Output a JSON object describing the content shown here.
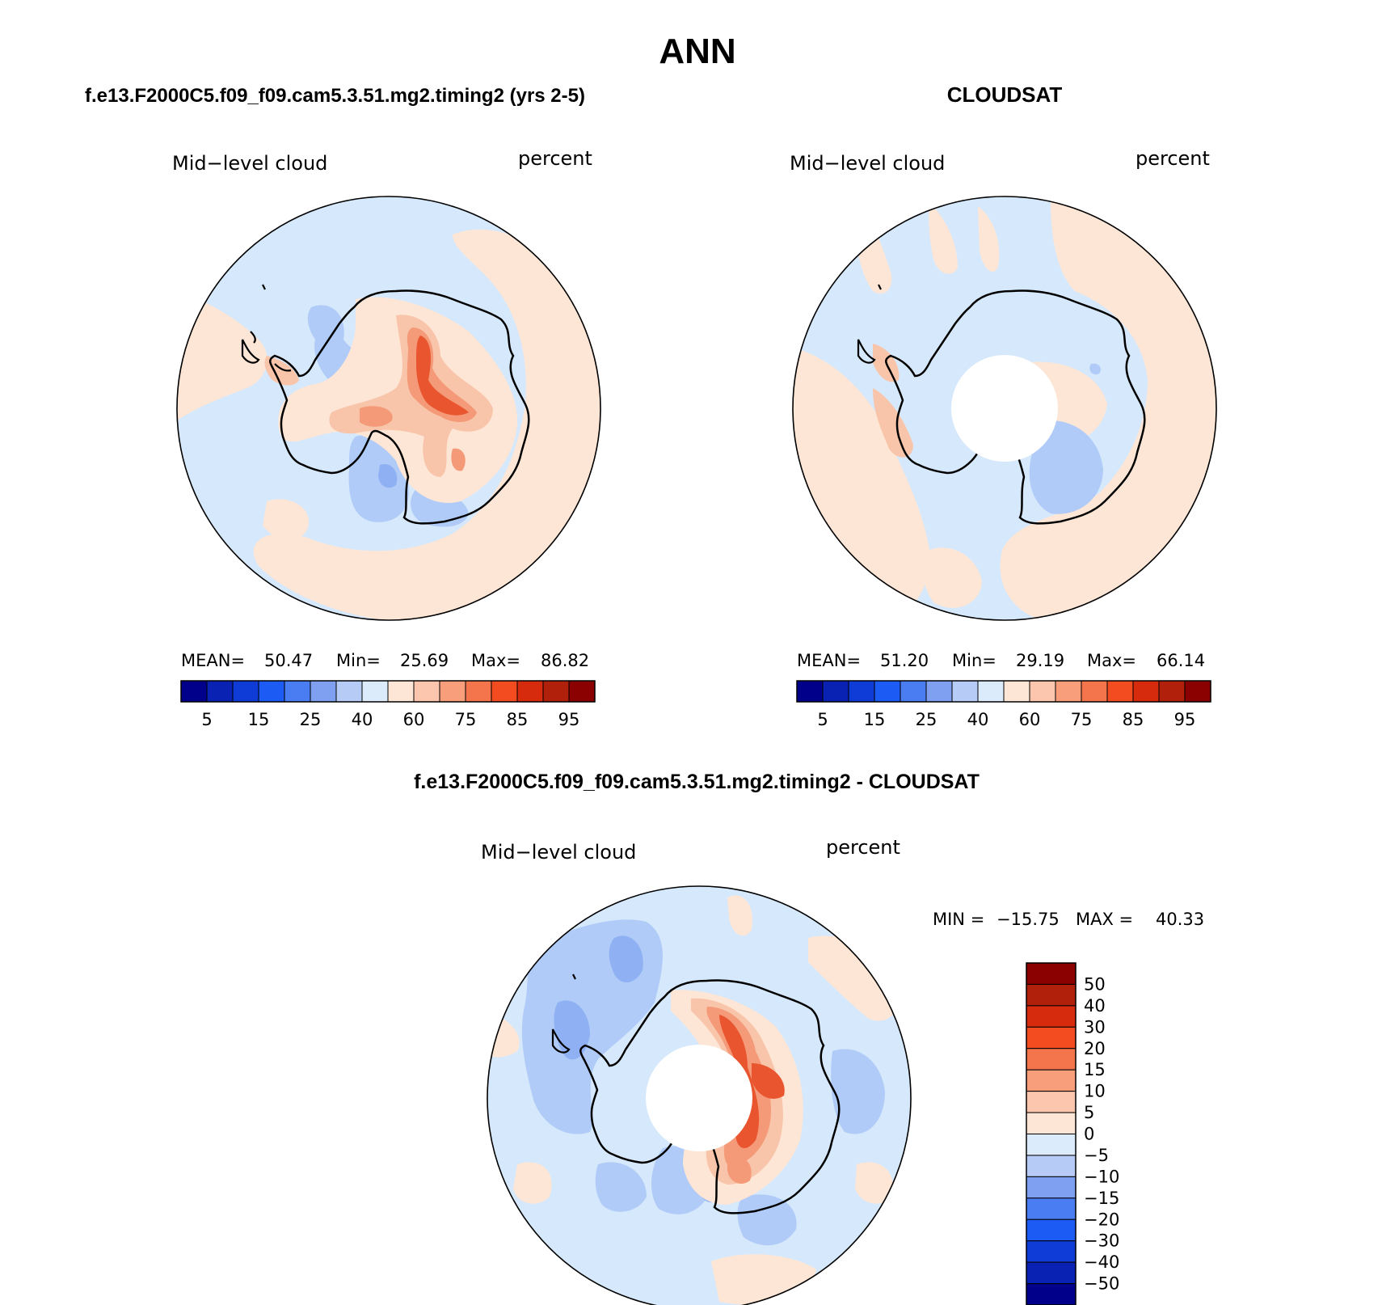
{
  "figure": {
    "title": "ANN",
    "colors": {
      "ocean_deep": "#d6e8fb",
      "light_blue": "#d6e8fb",
      "mid_blue": "#b0cbf7",
      "blue": "#8fb1f3",
      "light_orange": "#fde6d6",
      "orange": "#f9c5aa",
      "deep_orange": "#f49a78",
      "red": "#e8552e",
      "coastline": "#000000"
    },
    "panels": [
      {
        "id": "model",
        "title": "f.e13.F2000C5.f09_f09.cam5.3.51.mg2.timing2 (yrs 2-5)",
        "left_label": "Mid−level cloud",
        "right_label": "percent",
        "stats": {
          "mean_label": "MEAN=",
          "mean": "50.47",
          "min_label": "Min=",
          "min": "25.69",
          "max_label": "Max=",
          "max": "86.82"
        },
        "has_pole_hole": false
      },
      {
        "id": "obs",
        "title": "CLOUDSAT",
        "left_label": "Mid−level cloud",
        "right_label": "percent",
        "stats": {
          "mean_label": "MEAN=",
          "mean": "51.20",
          "min_label": "Min=",
          "min": "29.19",
          "max_label": "Max=",
          "max": "66.14"
        },
        "has_pole_hole": true
      },
      {
        "id": "diff",
        "title": "f.e13.F2000C5.f09_f09.cam5.3.51.mg2.timing2 - CLOUDSAT",
        "left_label": "Mid−level cloud",
        "right_label": "percent",
        "stats_text": {
          "min_label": "MIN =",
          "min": "−15.75",
          "max_label": "MAX =",
          "max": "40.33"
        },
        "has_pole_hole": true
      }
    ],
    "horizontal_colorbar": {
      "colors": [
        "#00008b",
        "#0a22b3",
        "#0f3bd6",
        "#1d5bf5",
        "#4a7cf2",
        "#7f9ff0",
        "#b6cbf6",
        "#dcebfb",
        "#fde6d6",
        "#fbc6ad",
        "#f89e7b",
        "#f4744b",
        "#f24c20",
        "#d62b0c",
        "#b0200a",
        "#8b0000"
      ],
      "tick_labels": [
        "5",
        "15",
        "25",
        "40",
        "60",
        "75",
        "85",
        "95"
      ]
    },
    "vertical_colorbar": {
      "colors_top_to_bottom": [
        "#8b0000",
        "#b0200a",
        "#d62b0c",
        "#f24c20",
        "#f4744b",
        "#f89e7b",
        "#fbc6ad",
        "#fde6d6",
        "#dcebfb",
        "#b6cbf6",
        "#7f9ff0",
        "#4a7cf2",
        "#1d5bf5",
        "#0f3bd6",
        "#0a22b3",
        "#00008b"
      ],
      "tick_labels": [
        "50",
        "40",
        "30",
        "20",
        "15",
        "10",
        "5",
        "0",
        "−5",
        "−10",
        "−15",
        "−20",
        "−30",
        "−40",
        "−50"
      ]
    }
  }
}
